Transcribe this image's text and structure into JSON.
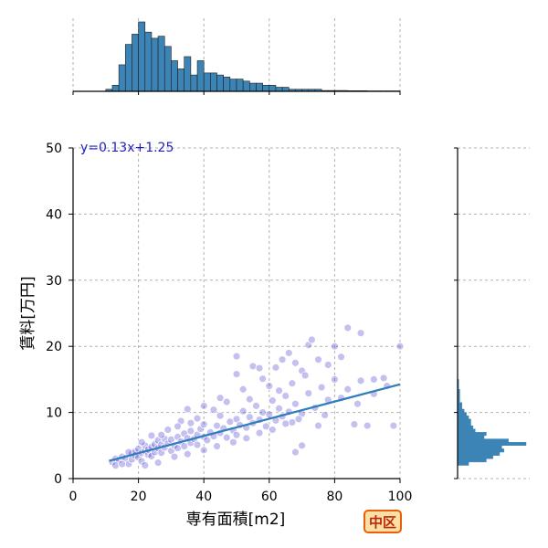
{
  "badge": {
    "label": "中区",
    "colors": {
      "border": "#e8610a",
      "fill": "#fddfa6",
      "text": "#b8290c"
    }
  },
  "chart_data": {
    "type": "scatter",
    "xlabel": "専有面積[m2]",
    "ylabel": "賃料[万円]",
    "xlim": [
      0,
      100
    ],
    "ylim": [
      0,
      50
    ],
    "x_ticks": [
      0,
      20,
      40,
      60,
      80,
      100
    ],
    "y_ticks": [
      0,
      10,
      20,
      30,
      40,
      50
    ],
    "grid": true,
    "regression": {
      "label": "y=0.13x+1.25",
      "slope": 0.13,
      "intercept": 1.25,
      "x_range": [
        11,
        100
      ],
      "color": "#2f7ebc"
    },
    "colors": {
      "points": "#2a1ec9",
      "line": "#2f7ebc",
      "bars": "#3c84b5",
      "equation": "#1f1fbf"
    },
    "points": [
      [
        12,
        2.5
      ],
      [
        13,
        3.0
      ],
      [
        14,
        2.8
      ],
      [
        15,
        3.3
      ],
      [
        16,
        3.1
      ],
      [
        17,
        2.2
      ],
      [
        18,
        3.8
      ],
      [
        18,
        2.9
      ],
      [
        19,
        3.5
      ],
      [
        19,
        4.1
      ],
      [
        20,
        3.2
      ],
      [
        20,
        4.5
      ],
      [
        21,
        3.9
      ],
      [
        21,
        2.6
      ],
      [
        22,
        4.2
      ],
      [
        22,
        5.0
      ],
      [
        23,
        3.6
      ],
      [
        23,
        4.4
      ],
      [
        24,
        4.8
      ],
      [
        24,
        3.4
      ],
      [
        25,
        5.2
      ],
      [
        25,
        4.0
      ],
      [
        26,
        4.6
      ],
      [
        26,
        5.8
      ],
      [
        27,
        3.9
      ],
      [
        27,
        5.1
      ],
      [
        28,
        4.7
      ],
      [
        28,
        6.0
      ],
      [
        29,
        5.3
      ],
      [
        30,
        4.2
      ],
      [
        30,
        5.9
      ],
      [
        31,
        5.0
      ],
      [
        32,
        6.3
      ],
      [
        32,
        4.6
      ],
      [
        33,
        5.6
      ],
      [
        34,
        6.8
      ],
      [
        34,
        4.9
      ],
      [
        35,
        6.1
      ],
      [
        36,
        5.4
      ],
      [
        36,
        7.2
      ],
      [
        37,
        6.0
      ],
      [
        38,
        6.6
      ],
      [
        38,
        5.1
      ],
      [
        39,
        7.5
      ],
      [
        40,
        6.3
      ],
      [
        40,
        8.2
      ],
      [
        41,
        5.8
      ],
      [
        42,
        7.0
      ],
      [
        43,
        6.4
      ],
      [
        44,
        8.0
      ],
      [
        45,
        6.9
      ],
      [
        45,
        9.5
      ],
      [
        46,
        7.6
      ],
      [
        47,
        6.2
      ],
      [
        48,
        8.6
      ],
      [
        49,
        7.3
      ],
      [
        50,
        9.0
      ],
      [
        50,
        6.6
      ],
      [
        51,
        8.1
      ],
      [
        52,
        10.2
      ],
      [
        53,
        7.7
      ],
      [
        54,
        9.3
      ],
      [
        55,
        8.4
      ],
      [
        56,
        11.0
      ],
      [
        57,
        8.9
      ],
      [
        58,
        10.0
      ],
      [
        59,
        7.9
      ],
      [
        60,
        9.7
      ],
      [
        61,
        11.8
      ],
      [
        62,
        8.8
      ],
      [
        63,
        10.6
      ],
      [
        64,
        9.4
      ],
      [
        65,
        12.5
      ],
      [
        66,
        10.1
      ],
      [
        67,
        8.5
      ],
      [
        68,
        11.3
      ],
      [
        70,
        9.8
      ],
      [
        72,
        12.9
      ],
      [
        74,
        10.7
      ],
      [
        76,
        13.8
      ],
      [
        78,
        11.9
      ],
      [
        80,
        15.0
      ],
      [
        82,
        12.2
      ],
      [
        84,
        13.5
      ],
      [
        86,
        8.2
      ],
      [
        88,
        14.8
      ],
      [
        90,
        8.0
      ],
      [
        92,
        12.8
      ],
      [
        95,
        15.2
      ],
      [
        98,
        8.0
      ],
      [
        40,
        11.0
      ],
      [
        50,
        15.8
      ],
      [
        50,
        18.5
      ],
      [
        55,
        17.0
      ],
      [
        57,
        16.7
      ],
      [
        60,
        14.0
      ],
      [
        62,
        16.8
      ],
      [
        64,
        18.0
      ],
      [
        66,
        19.0
      ],
      [
        68,
        17.5
      ],
      [
        70,
        16.3
      ],
      [
        72,
        20.2
      ],
      [
        73,
        21.0
      ],
      [
        80,
        20.0
      ],
      [
        84,
        22.8
      ],
      [
        88,
        22.0
      ],
      [
        100,
        20.0
      ],
      [
        35,
        10.5
      ],
      [
        45,
        12.2
      ],
      [
        52,
        13.5
      ],
      [
        58,
        15.1
      ],
      [
        63,
        13.3
      ],
      [
        67,
        14.4
      ],
      [
        71,
        15.6
      ],
      [
        75,
        18.0
      ],
      [
        78,
        17.2
      ],
      [
        82,
        18.4
      ],
      [
        92,
        15.0
      ],
      [
        24,
        6.5
      ],
      [
        29,
        7.4
      ],
      [
        33,
        8.7
      ],
      [
        38,
        9.1
      ],
      [
        43,
        10.4
      ],
      [
        47,
        11.6
      ],
      [
        54,
        12.0
      ],
      [
        22,
        2.0
      ],
      [
        26,
        2.4
      ],
      [
        31,
        3.3
      ],
      [
        35,
        3.7
      ],
      [
        40,
        4.3
      ],
      [
        44,
        4.9
      ],
      [
        49,
        5.5
      ],
      [
        53,
        6.1
      ],
      [
        57,
        6.9
      ],
      [
        61,
        7.4
      ],
      [
        65,
        8.3
      ],
      [
        69,
        9.0
      ],
      [
        77,
        9.6
      ],
      [
        87,
        11.3
      ],
      [
        96,
        14.0
      ],
      [
        68,
        4.0
      ],
      [
        70,
        5.0
      ],
      [
        75,
        8.0
      ],
      [
        13,
        2.0
      ],
      [
        15,
        2.2
      ],
      [
        17,
        4.0
      ],
      [
        21,
        5.5
      ],
      [
        27,
        6.6
      ],
      [
        32,
        7.9
      ],
      [
        36,
        8.4
      ]
    ],
    "x_histogram": {
      "bin_edges": [
        10,
        12,
        14,
        16,
        18,
        20,
        22,
        24,
        26,
        28,
        30,
        32,
        34,
        36,
        38,
        40,
        42,
        44,
        46,
        48,
        50,
        52,
        54,
        56,
        58,
        60,
        62,
        64,
        66,
        68,
        70,
        72,
        74,
        76,
        78,
        80,
        82,
        84,
        86,
        88,
        90,
        92,
        94,
        96,
        98,
        100
      ],
      "counts": [
        1,
        3,
        13,
        23,
        28,
        34,
        29,
        26,
        27,
        22,
        15,
        11,
        17,
        8,
        15,
        9,
        9,
        8,
        7,
        6,
        6,
        5,
        4,
        4,
        3,
        3,
        2,
        2,
        1,
        1,
        1,
        1,
        1,
        0.4,
        0.4,
        0.4,
        0.4,
        0.3,
        0.3,
        0.3,
        0.2,
        0.2,
        0.2,
        0.2,
        0.2
      ]
    },
    "y_histogram": {
      "bin_edges": [
        2,
        2.5,
        3,
        3.5,
        4,
        4.5,
        5,
        5.5,
        6,
        6.5,
        7,
        7.5,
        8,
        8.5,
        9,
        9.5,
        10,
        10.5,
        11,
        11.5,
        12,
        12.5,
        13,
        13.5,
        14,
        14.5,
        15
      ],
      "counts": [
        5,
        13,
        16,
        19,
        21,
        20,
        31,
        23,
        12,
        13,
        8,
        7,
        6,
        6,
        5,
        4,
        3,
        2,
        2,
        1,
        1,
        1,
        1,
        0.5,
        0.5,
        0.5,
        0.5
      ]
    }
  }
}
